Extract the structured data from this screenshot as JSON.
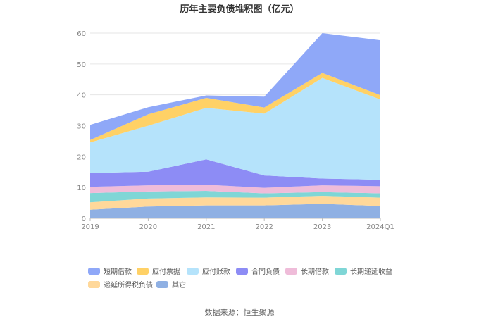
{
  "chart_data": {
    "type": "area",
    "stacked": true,
    "title": "历年主要负债堆积图（亿元）",
    "categories": [
      "2019",
      "2020",
      "2021",
      "2022",
      "2023",
      "2024Q1"
    ],
    "ylim": [
      0,
      60
    ],
    "yticks": [
      0,
      10,
      20,
      30,
      40,
      50,
      60
    ],
    "grid": true,
    "legend_position": "bottom",
    "series": [
      {
        "name": "其它",
        "color": "#8fb0e3",
        "values": [
          2.8,
          3.8,
          4.2,
          4.2,
          4.7,
          4.0
        ]
      },
      {
        "name": "递延所得税负债",
        "color": "#ffd89a",
        "values": [
          2.4,
          2.6,
          2.6,
          2.5,
          2.6,
          2.7
        ]
      },
      {
        "name": "长期递延收益",
        "color": "#7fd6d6",
        "values": [
          3.0,
          2.3,
          2.1,
          1.4,
          1.2,
          1.4
        ]
      },
      {
        "name": "长期借款",
        "color": "#efbcd9",
        "values": [
          2.0,
          2.0,
          2.0,
          1.8,
          2.2,
          2.3
        ]
      },
      {
        "name": "合同负债",
        "color": "#8d8cf5",
        "values": [
          4.5,
          4.4,
          8.2,
          4.0,
          2.2,
          2.1
        ]
      },
      {
        "name": "应付账款",
        "color": "#b5e3fb",
        "values": [
          9.9,
          14.9,
          16.7,
          20.0,
          32.6,
          26.0
        ]
      },
      {
        "name": "应付票据",
        "color": "#ffd166",
        "values": [
          0.8,
          3.7,
          3.2,
          2.0,
          1.6,
          1.4
        ]
      },
      {
        "name": "短期借款",
        "color": "#8fa8f8",
        "values": [
          4.9,
          2.3,
          0.8,
          3.5,
          12.9,
          17.8
        ]
      }
    ]
  },
  "legend_order": [
    "短期借款",
    "应付票据",
    "应付账款",
    "合同负债",
    "长期借款",
    "长期递延收益",
    "递延所得税负债",
    "其它"
  ],
  "source": "数据来源：恒生聚源"
}
